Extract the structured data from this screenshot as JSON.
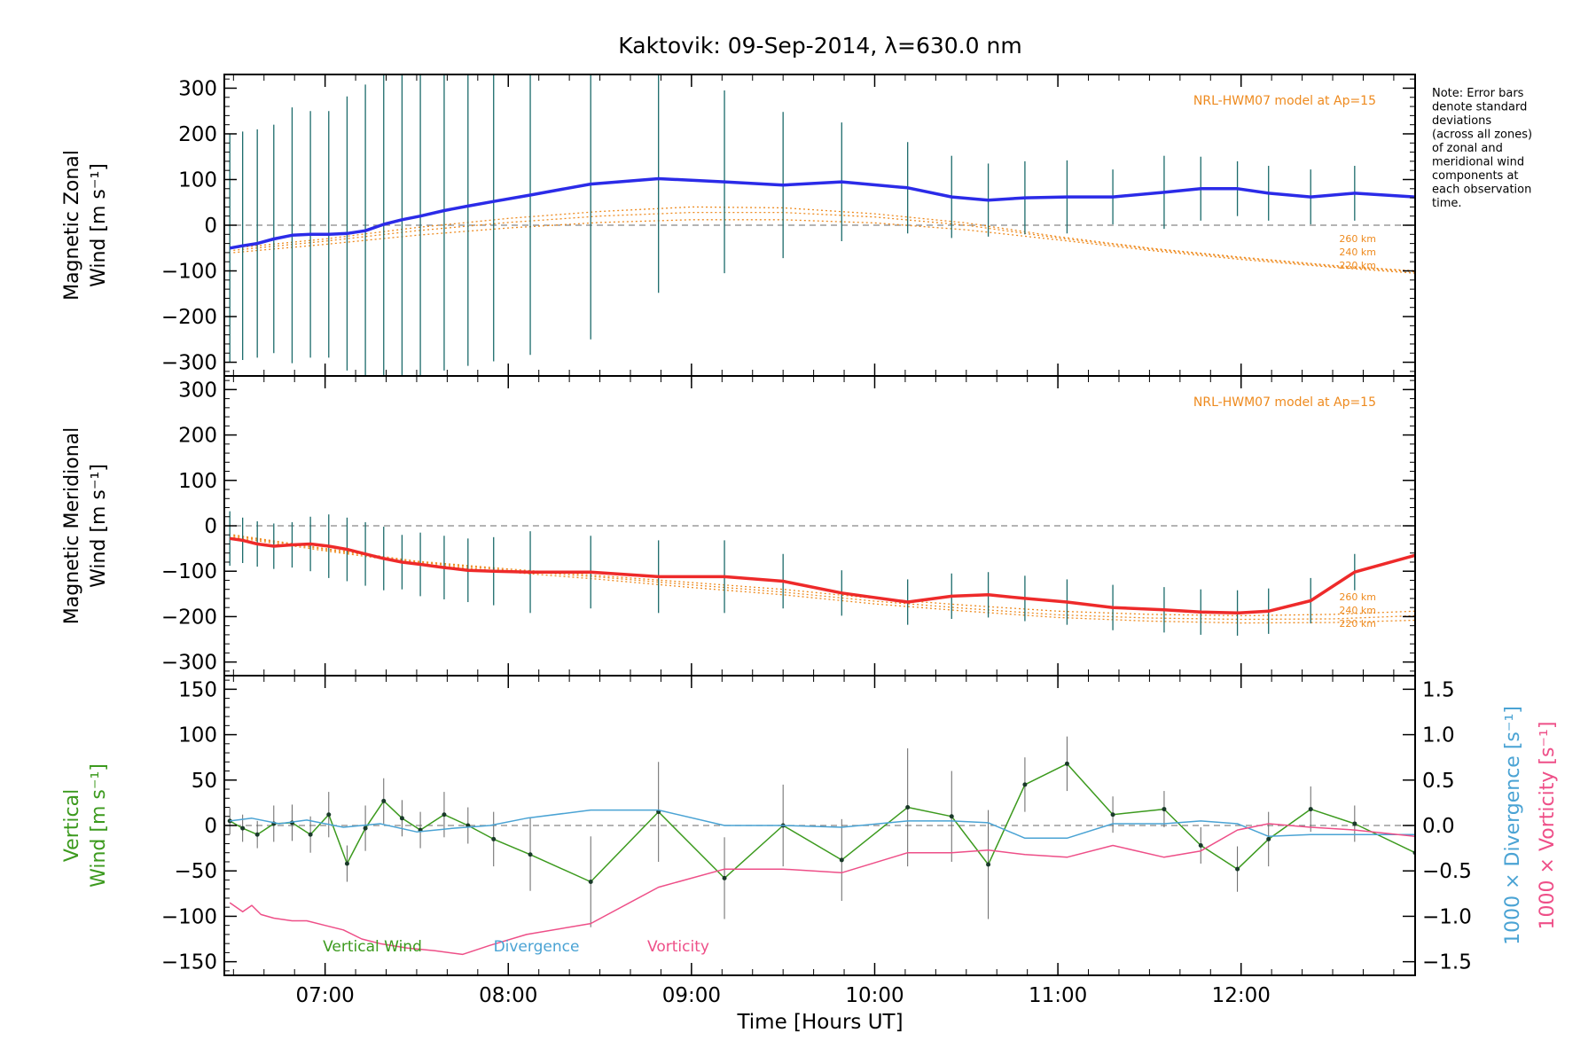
{
  "title": "Kaktovik: 09-Sep-2014, λ=630.0 nm",
  "note": [
    "Note: Error bars",
    "denote standard",
    "deviations",
    "(across all zones)",
    "of zonal and",
    "meridional wind",
    "components at",
    "each observation",
    "time."
  ],
  "xlabel": "Time [Hours UT]",
  "x_ticks": [
    "07:00",
    "08:00",
    "09:00",
    "10:00",
    "11:00",
    "12:00"
  ],
  "x_tick_values": [
    7,
    8,
    9,
    10,
    11,
    12
  ],
  "xlim": [
    6.45,
    12.95
  ],
  "colors": {
    "zonal": "#2b2be8",
    "meridional": "#ee2a2a",
    "vertical": "#3c9a1e",
    "divergence": "#4aa3d4",
    "vorticity": "#ee4f88",
    "model": "#ee8a1e",
    "zero": "#888888"
  },
  "chart_data": [
    {
      "type": "line",
      "panel": "zonal",
      "ylabel_lines": [
        "Magnetic Zonal",
        "Wind [m s⁻¹]"
      ],
      "ylim": [
        -330,
        330
      ],
      "y_ticks": [
        300,
        200,
        100,
        0,
        -100,
        -200,
        -300
      ],
      "model_label": "NRL-HWM07 model at Ap=15",
      "model_alt_labels": [
        "260 km",
        "240 km",
        "220 km"
      ],
      "series": [
        {
          "x": [
            6.48,
            6.55,
            6.63,
            6.72,
            6.82,
            6.92,
            7.02,
            7.12,
            7.22,
            7.32,
            7.42,
            7.52,
            7.65,
            7.78,
            7.92,
            8.12,
            8.45,
            8.82,
            9.18,
            9.5,
            9.82,
            10.18,
            10.42,
            10.62,
            10.82,
            11.05,
            11.3,
            11.58,
            11.78,
            11.98,
            12.15,
            12.38,
            12.62,
            12.95
          ],
          "y": [
            -50,
            -45,
            -40,
            -30,
            -22,
            -20,
            -20,
            -18,
            -12,
            2,
            12,
            20,
            32,
            42,
            52,
            66,
            90,
            102,
            95,
            88,
            95,
            82,
            62,
            55,
            60,
            62,
            62,
            72,
            80,
            80,
            70,
            62,
            70,
            62
          ],
          "err": [
            250,
            250,
            250,
            250,
            280,
            270,
            270,
            300,
            320,
            350,
            350,
            350,
            350,
            350,
            350,
            350,
            340,
            250,
            200,
            160,
            130,
            100,
            90,
            80,
            80,
            80,
            60,
            80,
            70,
            60,
            60,
            60,
            60,
            50
          ]
        }
      ],
      "model": [
        {
          "x": [
            6.5,
            7.0,
            7.5,
            8.0,
            8.5,
            9.0,
            9.5,
            10.0,
            10.5,
            11.0,
            11.5,
            12.0,
            12.5,
            12.95
          ],
          "y": [
            -50,
            -30,
            -5,
            15,
            30,
            40,
            38,
            25,
            5,
            -25,
            -50,
            -70,
            -88,
            -100
          ]
        },
        {
          "x": [
            6.5,
            7.0,
            7.5,
            8.0,
            8.5,
            9.0,
            9.5,
            10.0,
            10.5,
            11.0,
            11.5,
            12.0,
            12.5,
            12.95
          ],
          "y": [
            -55,
            -35,
            -12,
            6,
            20,
            28,
            28,
            18,
            0,
            -28,
            -52,
            -72,
            -90,
            -102
          ]
        },
        {
          "x": [
            6.5,
            7.0,
            7.5,
            8.0,
            8.5,
            9.0,
            9.5,
            10.0,
            10.5,
            11.0,
            11.5,
            12.0,
            12.5,
            12.95
          ],
          "y": [
            -60,
            -42,
            -22,
            -6,
            6,
            12,
            12,
            5,
            -10,
            -32,
            -55,
            -75,
            -92,
            -105
          ]
        }
      ]
    },
    {
      "type": "line",
      "panel": "meridional",
      "ylabel_lines": [
        "Magnetic Meridional",
        "Wind [m s⁻¹]"
      ],
      "ylim": [
        -330,
        330
      ],
      "y_ticks": [
        300,
        200,
        100,
        0,
        -100,
        -200,
        -300
      ],
      "model_label": "NRL-HWM07 model at Ap=15",
      "model_alt_labels": [
        "260 km",
        "240 km",
        "220 km"
      ],
      "series": [
        {
          "x": [
            6.48,
            6.55,
            6.63,
            6.72,
            6.82,
            6.92,
            7.02,
            7.12,
            7.22,
            7.32,
            7.42,
            7.52,
            7.65,
            7.78,
            7.92,
            8.12,
            8.45,
            8.82,
            9.18,
            9.5,
            9.82,
            10.18,
            10.42,
            10.62,
            10.82,
            11.05,
            11.3,
            11.58,
            11.78,
            11.98,
            12.15,
            12.38,
            12.62,
            12.95
          ],
          "y": [
            -28,
            -32,
            -40,
            -45,
            -42,
            -40,
            -45,
            -52,
            -62,
            -72,
            -80,
            -85,
            -92,
            -98,
            -100,
            -102,
            -102,
            -112,
            -112,
            -122,
            -148,
            -168,
            -155,
            -152,
            -160,
            -168,
            -180,
            -185,
            -190,
            -192,
            -188,
            -165,
            -102,
            -65
          ],
          "err": [
            60,
            50,
            50,
            50,
            50,
            60,
            70,
            70,
            70,
            70,
            60,
            70,
            70,
            70,
            75,
            90,
            80,
            80,
            80,
            60,
            50,
            50,
            50,
            50,
            50,
            50,
            50,
            50,
            50,
            50,
            50,
            50,
            40,
            40
          ]
        }
      ],
      "model": [
        {
          "x": [
            6.5,
            7.0,
            7.5,
            8.0,
            8.5,
            9.0,
            9.5,
            10.0,
            10.5,
            11.0,
            11.5,
            12.0,
            12.5,
            12.95
          ],
          "y": [
            -20,
            -50,
            -78,
            -95,
            -110,
            -125,
            -140,
            -160,
            -175,
            -188,
            -195,
            -198,
            -195,
            -188
          ]
        },
        {
          "x": [
            6.5,
            7.0,
            7.5,
            8.0,
            8.5,
            9.0,
            9.5,
            10.0,
            10.5,
            11.0,
            11.5,
            12.0,
            12.5,
            12.95
          ],
          "y": [
            -22,
            -52,
            -80,
            -98,
            -113,
            -130,
            -146,
            -166,
            -182,
            -196,
            -203,
            -206,
            -205,
            -198
          ]
        },
        {
          "x": [
            6.5,
            7.0,
            7.5,
            8.0,
            8.5,
            9.0,
            9.5,
            10.0,
            10.5,
            11.0,
            11.5,
            12.0,
            12.5,
            12.95
          ],
          "y": [
            -25,
            -55,
            -83,
            -102,
            -118,
            -136,
            -152,
            -172,
            -188,
            -202,
            -210,
            -214,
            -213,
            -208
          ]
        }
      ]
    },
    {
      "type": "line",
      "panel": "vertical",
      "ylabel_lines": [
        "Vertical",
        "Wind [m s⁻¹]"
      ],
      "ylim": [
        -165,
        165
      ],
      "y_ticks": [
        150,
        100,
        50,
        0,
        -50,
        -100,
        -150
      ],
      "right_ylim": [
        -1.65,
        1.65
      ],
      "right_ticks": [
        1.5,
        1.0,
        0.5,
        0.0,
        -0.5,
        -1.0,
        -1.5
      ],
      "right_tick_labels": [
        "1.5",
        "1.0",
        "0.5",
        "0.0",
        "−0.5",
        "−1.0",
        "−1.5"
      ],
      "right_label_div": "1000 × Divergence [s⁻¹]",
      "right_label_vort": "1000 × Vorticity [s⁻¹]",
      "legend": [
        "Vertical Wind",
        "Divergence",
        "Vorticity"
      ],
      "series": [
        {
          "name": "Vertical Wind",
          "x": [
            6.48,
            6.55,
            6.63,
            6.72,
            6.82,
            6.92,
            7.02,
            7.12,
            7.22,
            7.32,
            7.42,
            7.52,
            7.65,
            7.78,
            7.92,
            8.12,
            8.45,
            8.82,
            9.18,
            9.5,
            9.82,
            10.18,
            10.42,
            10.62,
            10.82,
            11.05,
            11.3,
            11.58,
            11.78,
            11.98,
            12.15,
            12.38,
            12.62,
            12.95
          ],
          "y": [
            5,
            -3,
            -10,
            2,
            3,
            -10,
            12,
            -42,
            -3,
            27,
            8,
            -5,
            12,
            0,
            -15,
            -32,
            -62,
            15,
            -58,
            0,
            -38,
            20,
            10,
            -43,
            45,
            68,
            12,
            18,
            -22,
            -48,
            -15,
            18,
            2,
            -30
          ],
          "err": [
            15,
            15,
            15,
            20,
            20,
            20,
            25,
            20,
            25,
            25,
            20,
            20,
            25,
            20,
            30,
            40,
            50,
            55,
            45,
            45,
            45,
            65,
            50,
            60,
            30,
            30,
            20,
            20,
            20,
            25,
            30,
            25,
            20,
            15
          ]
        },
        {
          "name": "Divergence",
          "x": [
            6.48,
            6.6,
            6.75,
            6.9,
            7.1,
            7.3,
            7.5,
            7.7,
            7.9,
            8.1,
            8.45,
            8.82,
            9.18,
            9.5,
            9.82,
            10.18,
            10.42,
            10.62,
            10.82,
            11.05,
            11.3,
            11.58,
            11.78,
            11.98,
            12.15,
            12.38,
            12.62,
            12.95
          ],
          "y": [
            0.05,
            0.08,
            0.02,
            0.06,
            -0.02,
            0.02,
            -0.07,
            -0.03,
            0.0,
            0.08,
            0.17,
            0.17,
            0.0,
            0.0,
            -0.02,
            0.05,
            0.05,
            0.03,
            -0.14,
            -0.14,
            0.02,
            0.02,
            0.05,
            0.02,
            -0.12,
            -0.1,
            -0.1,
            -0.1
          ]
        },
        {
          "name": "Vorticity",
          "x": [
            6.48,
            6.55,
            6.6,
            6.65,
            6.72,
            6.82,
            6.9,
            7.0,
            7.1,
            7.2,
            7.3,
            7.45,
            7.6,
            7.75,
            7.9,
            8.1,
            8.45,
            8.82,
            9.18,
            9.5,
            9.82,
            10.18,
            10.42,
            10.62,
            10.82,
            11.05,
            11.3,
            11.58,
            11.78,
            11.98,
            12.15,
            12.38,
            12.62,
            12.95
          ],
          "y": [
            -0.85,
            -0.95,
            -0.88,
            -0.98,
            -1.02,
            -1.05,
            -1.05,
            -1.1,
            -1.15,
            -1.25,
            -1.3,
            -1.35,
            -1.38,
            -1.42,
            -1.32,
            -1.2,
            -1.08,
            -0.68,
            -0.48,
            -0.48,
            -0.52,
            -0.3,
            -0.3,
            -0.27,
            -0.32,
            -0.35,
            -0.22,
            -0.35,
            -0.28,
            -0.05,
            0.02,
            -0.02,
            -0.05,
            -0.12
          ]
        }
      ]
    }
  ]
}
